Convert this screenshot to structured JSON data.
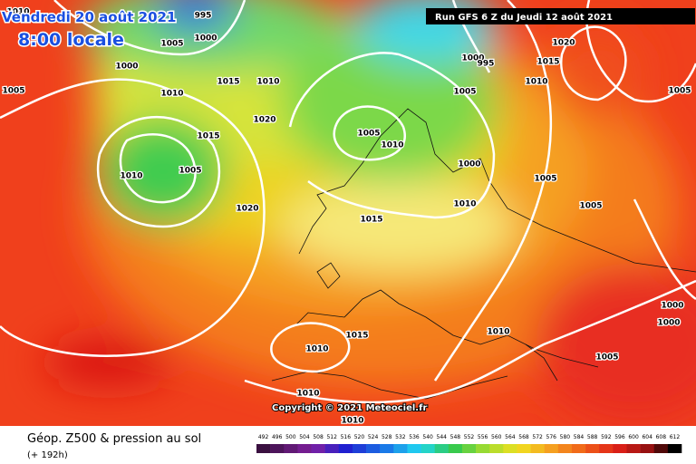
{
  "header": {
    "date": "Vendredi 20 août 2021",
    "time": "8:00 locale",
    "run": "Run GFS 6 Z du Jeudi 12 août 2021"
  },
  "copyright": "Copyright © 2021 Meteociel.fr",
  "legend": {
    "title": "Géop. Z500 & pression au sol",
    "lead": "(+ 192h)",
    "scale": [
      492,
      496,
      500,
      504,
      508,
      512,
      516,
      520,
      524,
      528,
      532,
      536,
      540,
      544,
      548,
      552,
      556,
      560,
      564,
      568,
      572,
      576,
      580,
      584,
      588,
      592,
      596,
      600,
      604,
      608,
      612
    ]
  },
  "isobars": [
    995,
    1005,
    1000,
    1000,
    1010,
    1015,
    1010,
    1020,
    1015,
    1010,
    1005,
    1020,
    1005,
    1010,
    1000,
    1010,
    1015,
    1005,
    1000,
    995,
    1020,
    1015,
    1010,
    1005,
    1005,
    1005,
    1000,
    1000,
    1005,
    1010,
    1015,
    1010,
    1010,
    1010,
    1010,
    1005
  ]
}
